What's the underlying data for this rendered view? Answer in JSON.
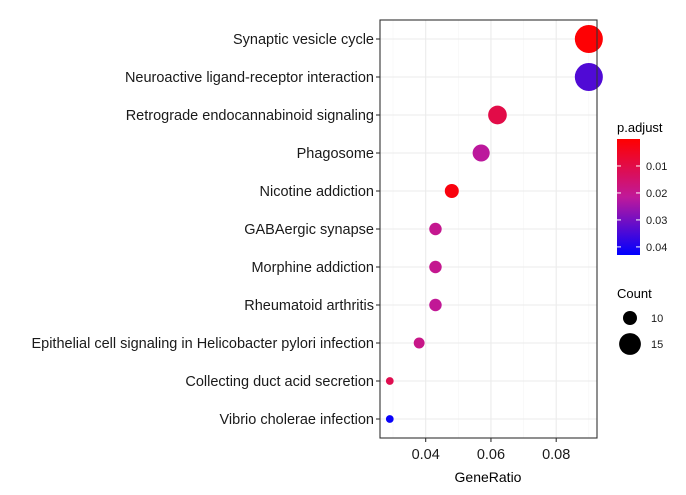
{
  "chart_data": {
    "type": "scatter",
    "subtype": "dot-plot",
    "xlabel": "GeneRatio",
    "ylabel": "",
    "xlim": [
      0.026,
      0.0925
    ],
    "x_ticks": [
      0.04,
      0.06,
      0.08
    ],
    "x_tick_labels": [
      "0.04",
      "0.06",
      "0.08"
    ],
    "grid": true,
    "categories": [
      "Synaptic vesicle cycle",
      "Neuroactive ligand-receptor interaction",
      "Retrograde endocannabinoid signaling",
      "Phagosome",
      "Nicotine addiction",
      "GABAergic synapse",
      "Morphine addiction",
      "Rheumatoid arthritis",
      "Epithelial cell signaling in Helicobacter pylori infection",
      "Collecting duct acid secretion",
      "Vibrio cholerae infection"
    ],
    "points": [
      {
        "term": "Synaptic vesicle cycle",
        "gene_ratio": 0.09,
        "count": 19,
        "p_adjust": 0.0005
      },
      {
        "term": "Neuroactive ligand-receptor interaction",
        "gene_ratio": 0.09,
        "count": 19,
        "p_adjust": 0.034
      },
      {
        "term": "Retrograde endocannabinoid signaling",
        "gene_ratio": 0.062,
        "count": 13,
        "p_adjust": 0.01
      },
      {
        "term": "Phagosome",
        "gene_ratio": 0.057,
        "count": 12,
        "p_adjust": 0.022
      },
      {
        "term": "Nicotine addiction",
        "gene_ratio": 0.048,
        "count": 10,
        "p_adjust": 0.002
      },
      {
        "term": "GABAergic synapse",
        "gene_ratio": 0.043,
        "count": 9,
        "p_adjust": 0.02
      },
      {
        "term": "Morphine addiction",
        "gene_ratio": 0.043,
        "count": 9,
        "p_adjust": 0.02
      },
      {
        "term": "Rheumatoid arthritis",
        "gene_ratio": 0.043,
        "count": 9,
        "p_adjust": 0.021
      },
      {
        "term": "Epithelial cell signaling in Helicobacter pylori infection",
        "gene_ratio": 0.038,
        "count": 8,
        "p_adjust": 0.019
      },
      {
        "term": "Collecting duct acid secretion",
        "gene_ratio": 0.029,
        "count": 6,
        "p_adjust": 0.011
      },
      {
        "term": "Vibrio cholerae infection",
        "gene_ratio": 0.029,
        "count": 6,
        "p_adjust": 0.042
      }
    ],
    "color_legend": {
      "title": "p.adjust",
      "min": 0.0,
      "max": 0.043,
      "low_color": "#ff0000",
      "mid_color": "#c0199a",
      "high_color": "#0000ff",
      "breaks": [
        0.01,
        0.02,
        0.03,
        0.04
      ],
      "break_labels": [
        "0.01",
        "0.02",
        "0.03",
        "0.04"
      ]
    },
    "size_legend": {
      "title": "Count",
      "breaks": [
        10,
        15
      ],
      "break_labels": [
        "10",
        "15"
      ]
    },
    "legend_position": "right",
    "colors": {
      "panel_border": "#333333",
      "grid_major": "#ebebeb",
      "grid_minor": "#f5f5f5",
      "axis_text": "#1a1a1a",
      "size_key": "#000000"
    }
  }
}
